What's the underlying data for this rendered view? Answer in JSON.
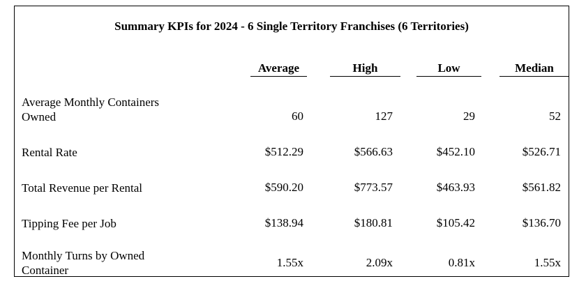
{
  "title": "Summary KPIs for 2024 - 6 Single Territory Franchises (6 Territories)",
  "columns": [
    "Average",
    "High",
    "Low",
    "Median"
  ],
  "rows": [
    {
      "label": "Average Monthly Containers Owned",
      "values": [
        "60",
        "127",
        "29",
        "52"
      ]
    },
    {
      "label": "Rental Rate",
      "values": [
        "$512.29",
        "$566.63",
        "$452.10",
        "$526.71"
      ]
    },
    {
      "label": "Total Revenue per Rental",
      "values": [
        "$590.20",
        "$773.57",
        "$463.93",
        "$561.82"
      ]
    },
    {
      "label": "Tipping Fee per Job",
      "values": [
        "$138.94",
        "$180.81",
        "$105.42",
        "$136.70"
      ]
    },
    {
      "label": "Monthly Turns by Owned Container",
      "values": [
        "1.55x",
        "2.09x",
        "0.81x",
        "1.55x"
      ]
    }
  ]
}
